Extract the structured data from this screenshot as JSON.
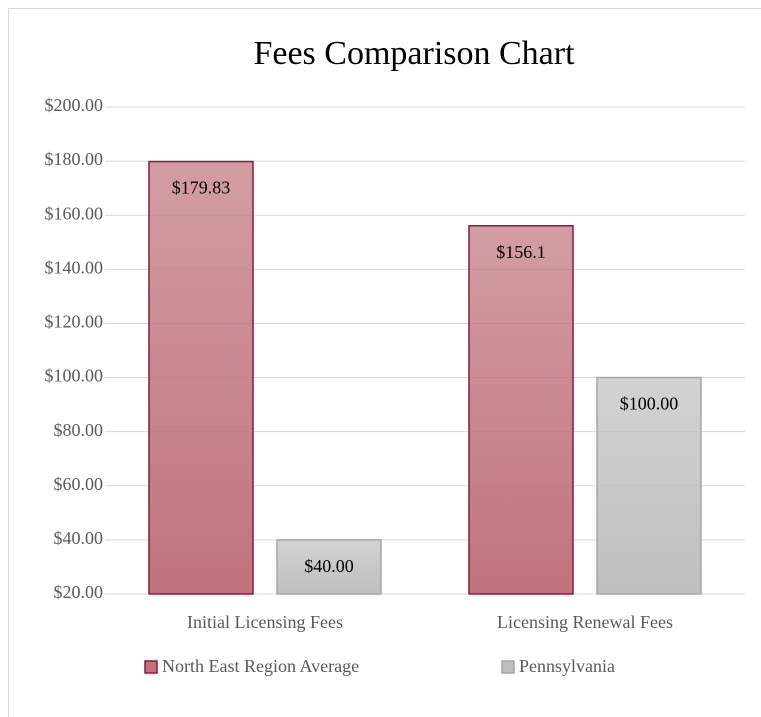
{
  "chart_data": {
    "type": "bar",
    "title": "Fees Comparison Chart",
    "categories": [
      "Initial Licensing Fees",
      "Licensing Renewal Fees"
    ],
    "series": [
      {
        "name": "North East Region Average",
        "color": "#c0737d",
        "values": [
          179.83,
          156.1
        ],
        "value_labels": [
          "$179.83",
          "$156.1"
        ]
      },
      {
        "name": "Pennsylvania",
        "color": "#bfbfbf",
        "values": [
          40,
          100
        ],
        "value_labels": [
          "$40.00",
          "$100.00"
        ]
      }
    ],
    "ylim": [
      20,
      200
    ],
    "yticks": [
      {
        "value": 20,
        "label": "$20.00"
      },
      {
        "value": 40,
        "label": "$40.00"
      },
      {
        "value": 60,
        "label": "$60.00"
      },
      {
        "value": 80,
        "label": "$80.00"
      },
      {
        "value": 100,
        "label": "$100.00"
      },
      {
        "value": 120,
        "label": "$120.00"
      },
      {
        "value": 140,
        "label": "$140.00"
      },
      {
        "value": 160,
        "label": "$160.00"
      },
      {
        "value": 180,
        "label": "$180.00"
      },
      {
        "value": 200,
        "label": "$200.00"
      }
    ],
    "grid": true,
    "legend": "bottom"
  }
}
